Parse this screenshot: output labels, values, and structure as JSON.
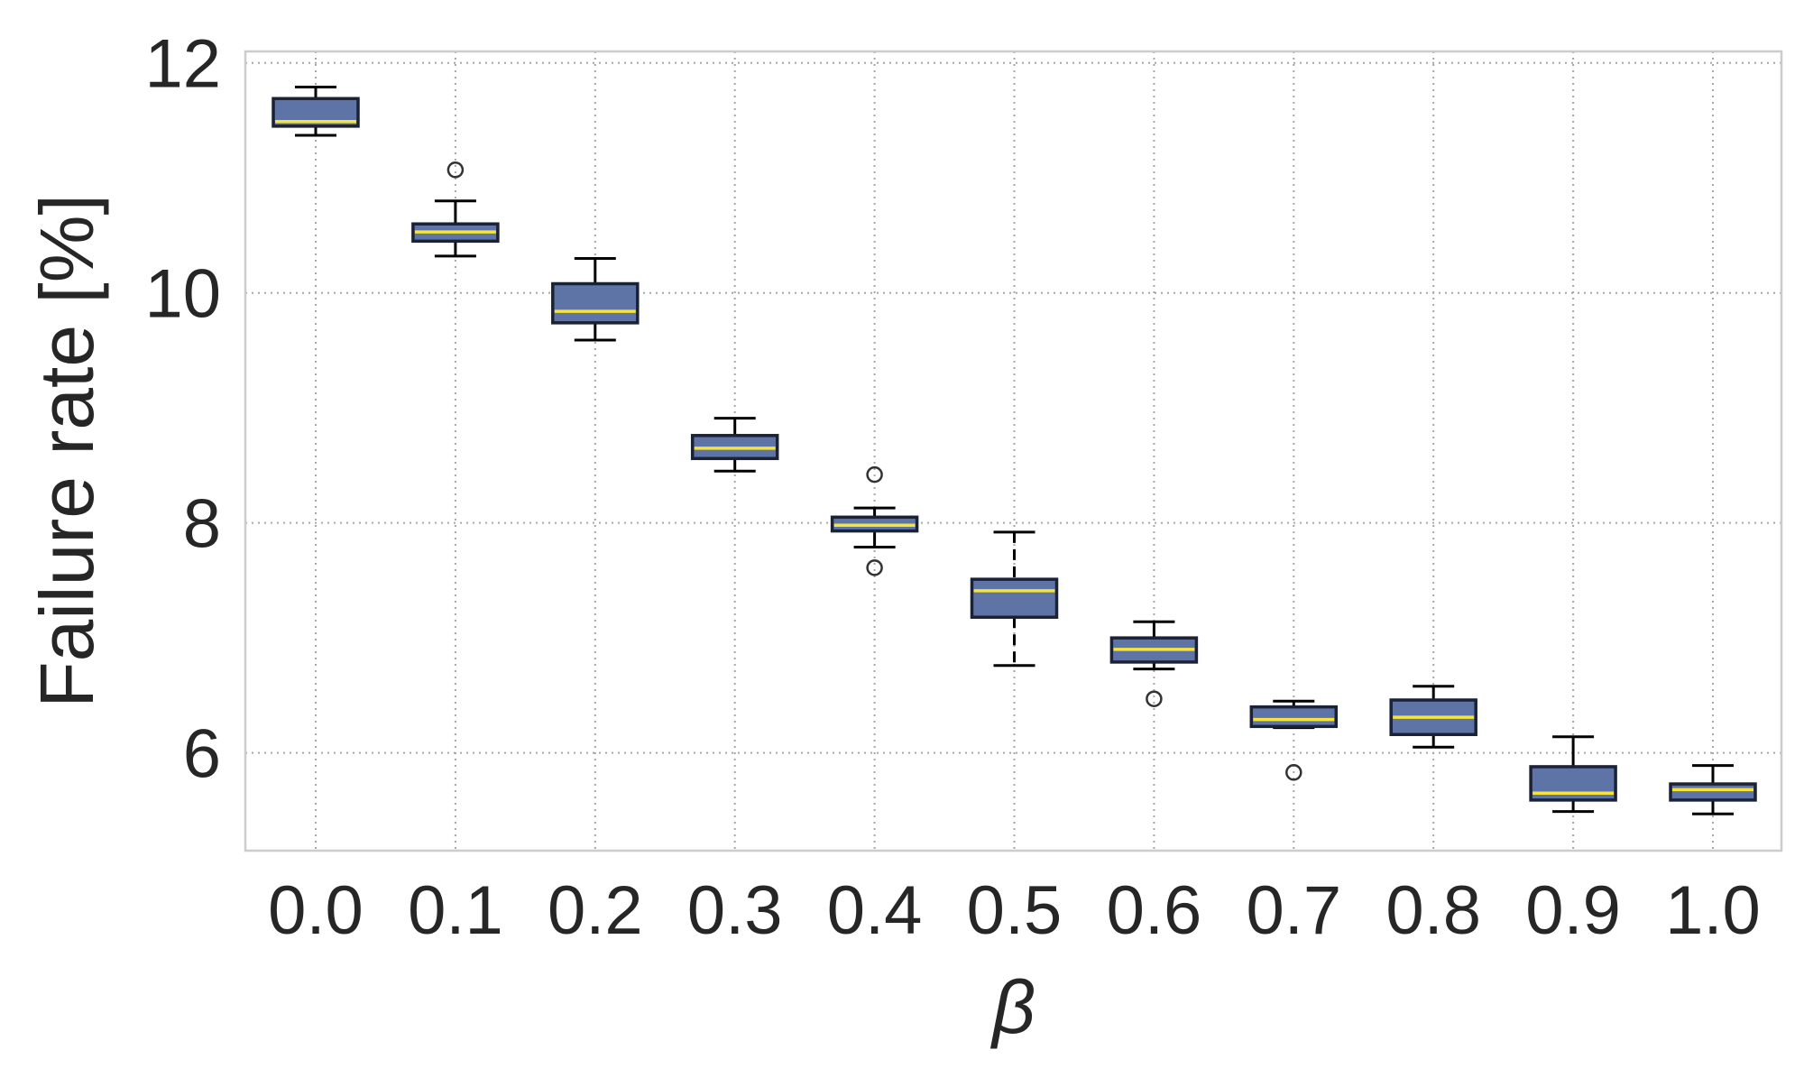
{
  "chart_data": {
    "type": "box",
    "xlabel": "β",
    "ylabel": "Failure rate [%]",
    "ylim": [
      5.15,
      12.1
    ],
    "yticks": [
      6,
      8,
      10,
      12
    ],
    "grid": true,
    "colors": {
      "box_fill": "#5e74a6",
      "box_edge": "#1b2236",
      "median": "#f6e43a",
      "grid": "#a6a6a6",
      "text": "#262626"
    },
    "categories": [
      "0.0",
      "0.1",
      "0.2",
      "0.3",
      "0.4",
      "0.5",
      "0.6",
      "0.7",
      "0.8",
      "0.9",
      "1.0"
    ],
    "boxes": [
      {
        "x": "0.0",
        "whisker_low": 11.37,
        "q1": 11.45,
        "median": 11.49,
        "q3": 11.69,
        "whisker_high": 11.79,
        "outliers": [],
        "dashed_whiskers": false
      },
      {
        "x": "0.1",
        "whisker_low": 10.32,
        "q1": 10.45,
        "median": 10.53,
        "q3": 10.6,
        "whisker_high": 10.8,
        "outliers": [
          11.07
        ],
        "dashed_whiskers": false
      },
      {
        "x": "0.2",
        "whisker_low": 9.59,
        "q1": 9.74,
        "median": 9.84,
        "q3": 10.08,
        "whisker_high": 10.3,
        "outliers": [],
        "dashed_whiskers": false
      },
      {
        "x": "0.3",
        "whisker_low": 8.45,
        "q1": 8.56,
        "median": 8.65,
        "q3": 8.76,
        "whisker_high": 8.91,
        "outliers": [],
        "dashed_whiskers": false
      },
      {
        "x": "0.4",
        "whisker_low": 7.79,
        "q1": 7.93,
        "median": 7.98,
        "q3": 8.05,
        "whisker_high": 8.13,
        "outliers": [
          8.42,
          7.61
        ],
        "dashed_whiskers": false
      },
      {
        "x": "0.5",
        "whisker_low": 6.76,
        "q1": 7.18,
        "median": 7.41,
        "q3": 7.51,
        "whisker_high": 7.92,
        "outliers": [],
        "dashed_whiskers": true
      },
      {
        "x": "0.6",
        "whisker_low": 6.73,
        "q1": 6.79,
        "median": 6.9,
        "q3": 7.0,
        "whisker_high": 7.14,
        "outliers": [
          6.47
        ],
        "dashed_whiskers": false
      },
      {
        "x": "0.7",
        "whisker_low": 6.22,
        "q1": 6.23,
        "median": 6.29,
        "q3": 6.4,
        "whisker_high": 6.45,
        "outliers": [
          5.83
        ],
        "dashed_whiskers": false
      },
      {
        "x": "0.8",
        "whisker_low": 6.05,
        "q1": 6.16,
        "median": 6.31,
        "q3": 6.46,
        "whisker_high": 6.58,
        "outliers": [],
        "dashed_whiskers": false
      },
      {
        "x": "0.9",
        "whisker_low": 5.49,
        "q1": 5.59,
        "median": 5.65,
        "q3": 5.88,
        "whisker_high": 6.14,
        "outliers": [],
        "dashed_whiskers": false
      },
      {
        "x": "1.0",
        "whisker_low": 5.47,
        "q1": 5.59,
        "median": 5.68,
        "q3": 5.73,
        "whisker_high": 5.89,
        "outliers": [],
        "dashed_whiskers": false
      }
    ]
  }
}
